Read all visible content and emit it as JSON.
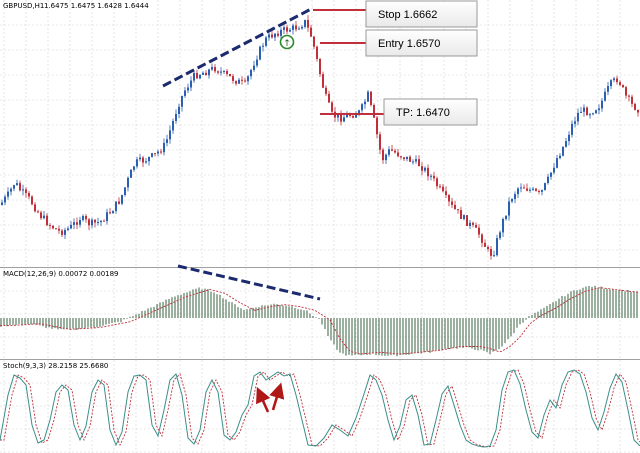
{
  "chart_data": [
    {
      "type": "candlestick",
      "title": "GBPUSD,H1",
      "ohlc": "1.6475 1.6475 1.6428 1.6444",
      "annotations": {
        "stop": "Stop 1.6662",
        "entry": "Entry 1.6570",
        "tp": "TP: 1.6470",
        "trade_marker": "↑"
      },
      "grid": true
    },
    {
      "type": "bar",
      "title": "MACD(12,26,9) 0.00072 0.00189",
      "grid": true
    },
    {
      "type": "line",
      "title": "Stoch(9,3,3) 28.2158 25.6680",
      "grid": true
    }
  ],
  "colors": {
    "bull": "#2b5fb0",
    "bear": "#c0303a",
    "macd_hist": "#3a6040",
    "signal": "#c0303a",
    "stoch_main": "#3a8f8a",
    "trend": "#1c2a6e",
    "level": "#c0303a",
    "marker": "#2a8a2a",
    "arrow": "#b01818",
    "grid": "#d4d4d4"
  }
}
